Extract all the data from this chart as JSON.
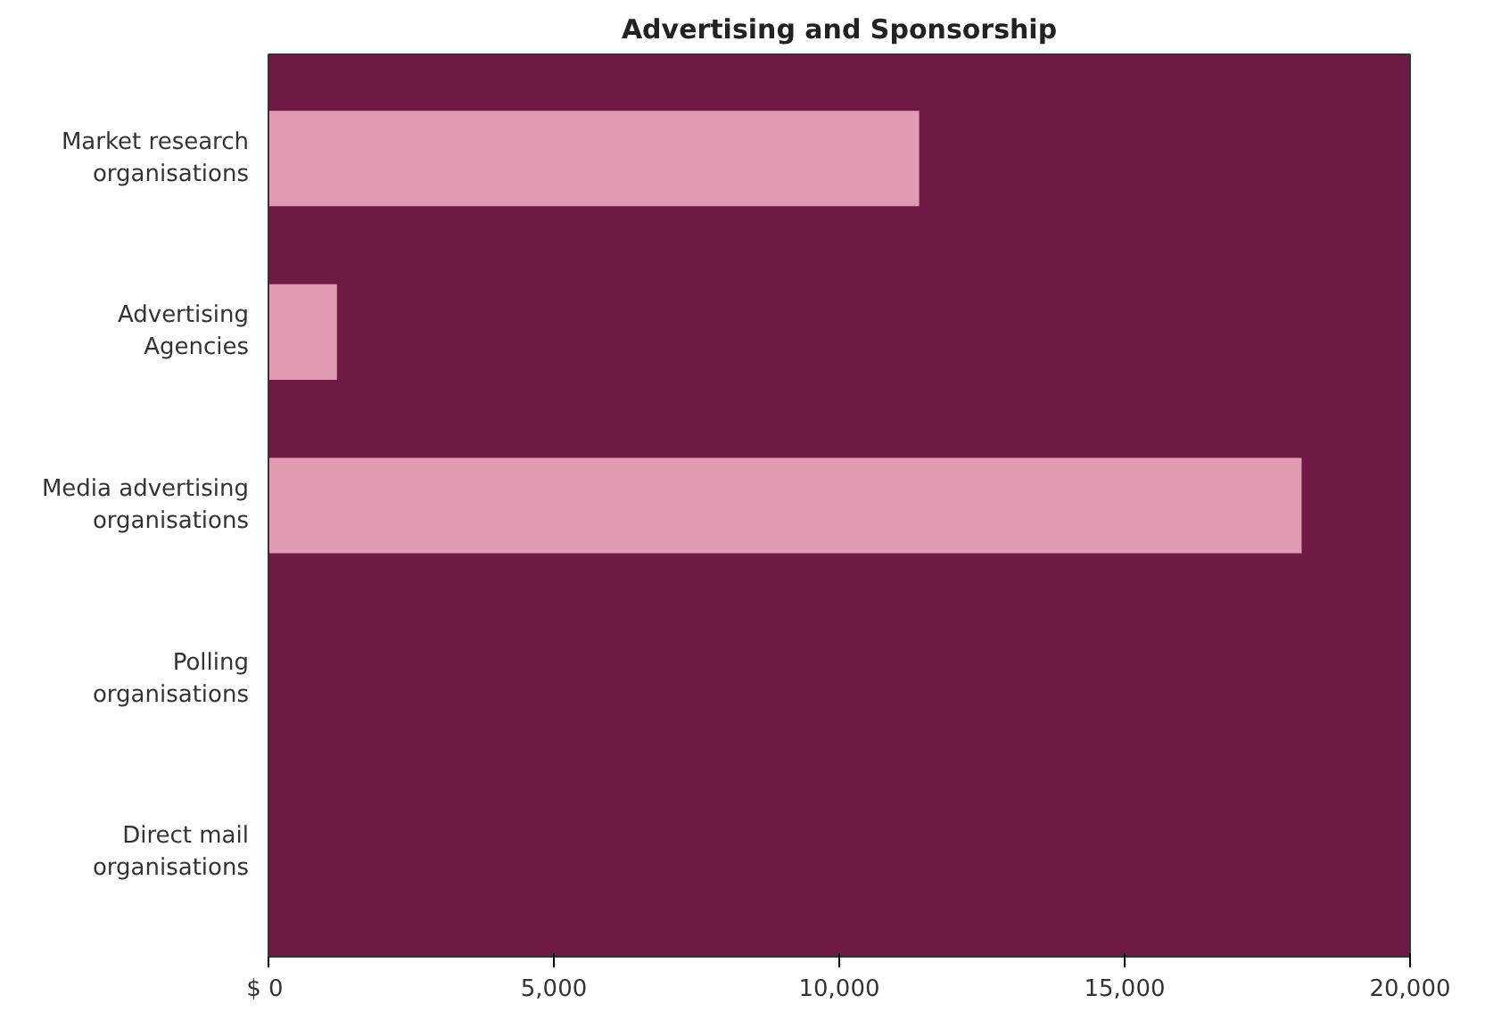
{
  "chart_data": {
    "type": "bar",
    "orientation": "horizontal",
    "title": "Advertising and Sponsorship",
    "categories": [
      "Market research\norganisations",
      "Advertising\nAgencies",
      "Media advertising\norganisations",
      "Polling\norganisations",
      "Direct mail\norganisations"
    ],
    "values": [
      11400,
      1200,
      18100,
      0,
      0
    ],
    "color": "#e09ab2",
    "xlim": [
      0,
      20000
    ],
    "xticks": [
      {
        "value": 0,
        "label": "$  0"
      },
      {
        "value": 5000,
        "label": "5,000"
      },
      {
        "value": 10000,
        "label": "10,000"
      },
      {
        "value": 15000,
        "label": "15,000"
      },
      {
        "value": 20000,
        "label": "20,000"
      }
    ],
    "grid": false
  }
}
